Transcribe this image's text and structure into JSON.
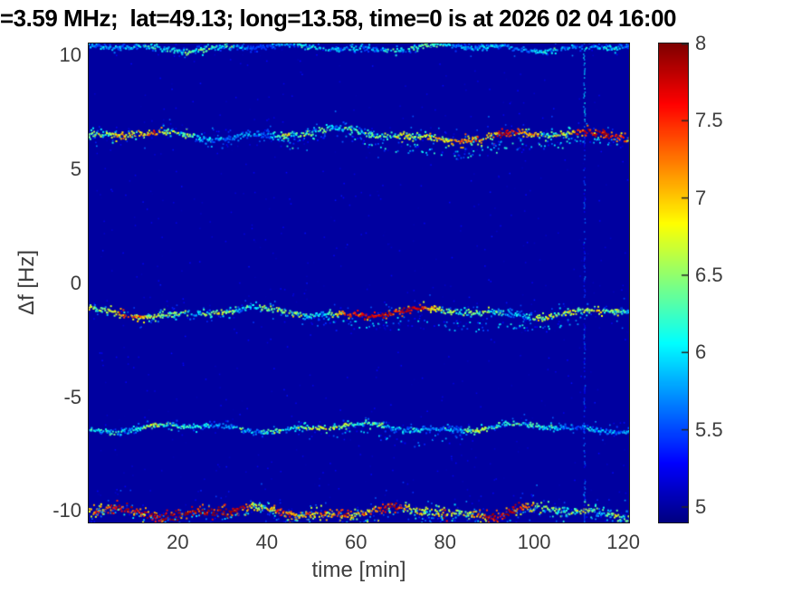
{
  "chart_data": {
    "type": "heatmap",
    "title": "=3.59 MHz;  lat=49.13; long=13.58, time=0 is at 2026 02 04 16:00",
    "xlabel": "time [min]",
    "ylabel": "Δf [Hz]",
    "xlim": [
      0,
      121.3
    ],
    "ylim": [
      -10.5,
      10.52
    ],
    "xticks": [
      20,
      40,
      60,
      80,
      100,
      120
    ],
    "yticks": [
      10,
      5,
      0,
      -5,
      -10
    ],
    "grid": false,
    "colorbar": {
      "min": 4.9,
      "max": 8,
      "ticks": [
        5,
        5.5,
        6,
        6.5,
        7,
        7.5,
        8
      ],
      "colormap": "jet",
      "position": "right"
    },
    "background_value": 5.0,
    "traces": [
      {
        "name": "doppler-trace-plus10",
        "base": 10.33,
        "waves": [
          [
            0.1,
            40,
            1.2
          ],
          [
            0.07,
            16,
            2.6
          ]
        ],
        "imid": 5.95,
        "ispan": 0.8,
        "imin": 5.45,
        "imax": 6.7,
        "thick": 0.05,
        "p": 0.8,
        "halo": 0.06,
        "seed": 11
      },
      {
        "name": "doppler-trace-plus6p5",
        "base": 6.5,
        "waves": [
          [
            0.15,
            46,
            0.2
          ],
          [
            0.1,
            19,
            1.9
          ],
          [
            0.07,
            85,
            4.2
          ]
        ],
        "imid": 6.9,
        "ispan": 2.0,
        "imin": 5.5,
        "imax": 7.85,
        "thick": 0.07,
        "p": 0.85,
        "halo": 0.22,
        "echo": {
          "from": 42,
          "to": 121,
          "off": -0.55,
          "spread": 0.3,
          "p": 0.4,
          "imin": 5.1,
          "imax": 6.3
        },
        "seed": 22
      },
      {
        "name": "doppler-trace-minus1p3",
        "base": -1.3,
        "waves": [
          [
            0.14,
            42,
            2.4
          ],
          [
            0.09,
            18,
            0.7
          ]
        ],
        "imid": 6.8,
        "ispan": 2.0,
        "imin": 5.5,
        "imax": 7.8,
        "thick": 0.06,
        "p": 0.85,
        "halo": 0.2,
        "echo": {
          "from": 48,
          "to": 112,
          "off": -0.6,
          "spread": 0.27,
          "p": 0.35,
          "imin": 5.1,
          "imax": 6.2
        },
        "seed": 33
      },
      {
        "name": "doppler-trace-minus6p3",
        "base": -6.35,
        "waves": [
          [
            0.13,
            38,
            4.2
          ],
          [
            0.08,
            16,
            2.1
          ]
        ],
        "imid": 6.15,
        "ispan": 1.2,
        "imin": 5.45,
        "imax": 7.3,
        "thick": 0.05,
        "p": 0.8,
        "halo": 0.1,
        "echo": {
          "from": 55,
          "to": 85,
          "off": -0.5,
          "spread": 0.22,
          "p": 0.22,
          "imin": 5.1,
          "imax": 6.0
        },
        "seed": 44
      },
      {
        "name": "doppler-trace-minus10",
        "base": -10.05,
        "waves": [
          [
            0.16,
            34,
            1.3
          ],
          [
            0.1,
            15,
            4.2
          ]
        ],
        "imid": 7.0,
        "ispan": 2.0,
        "imin": 5.6,
        "imax": 7.9,
        "thick": 0.09,
        "p": 0.9,
        "halo": 0.3,
        "echo": {
          "from": 0,
          "to": 121,
          "off": -0.25,
          "spread": 0.26,
          "p": 0.3,
          "imin": 5.1,
          "imax": 6.2
        },
        "seed": 55
      }
    ],
    "vertical_streak": {
      "time": 111.3,
      "imin": 5.15,
      "imax": 6.1,
      "seed": 77
    },
    "noise": {
      "count": 700,
      "imin": 5.0,
      "imax": 5.35,
      "seed": 99
    },
    "colors": {
      "background": "#ffffff",
      "axis_text": "#3d3d3d",
      "title_text": "#000000",
      "min_color": "#000080",
      "max_color": "#800000"
    }
  }
}
